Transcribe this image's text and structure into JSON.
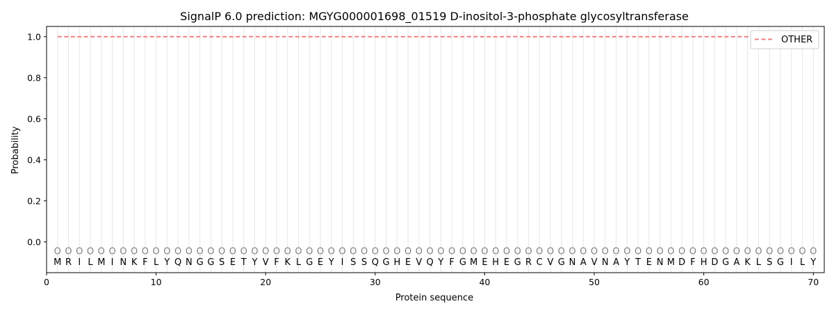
{
  "chart_data": {
    "type": "line",
    "title": "SignalP 6.0 prediction: MGYG000001698_01519 D-inositol-3-phosphate glycosyltransferase",
    "xlabel": "Protein sequence",
    "ylabel": "Probability",
    "xlim": [
      0,
      71
    ],
    "ylim": [
      -0.15,
      1.05
    ],
    "xticks": [
      0,
      10,
      20,
      30,
      40,
      50,
      60,
      70
    ],
    "yticks": [
      0.0,
      0.2,
      0.4,
      0.6,
      0.8,
      1.0
    ],
    "ytick_labels": [
      "0.0",
      "0.2",
      "0.4",
      "0.6",
      "0.8",
      "1.0"
    ],
    "grid": "vertical lines at each residue",
    "legend_position": "upper right",
    "sequence": [
      "M",
      "R",
      "I",
      "L",
      "M",
      "I",
      "N",
      "K",
      "F",
      "L",
      "Y",
      "Q",
      "N",
      "G",
      "G",
      "S",
      "E",
      "T",
      "Y",
      "V",
      "F",
      "K",
      "L",
      "G",
      "E",
      "Y",
      "I",
      "S",
      "S",
      "Q",
      "G",
      "H",
      "E",
      "V",
      "Q",
      "Y",
      "F",
      "G",
      "M",
      "E",
      "H",
      "E",
      "G",
      "R",
      "C",
      "V",
      "G",
      "N",
      "A",
      "V",
      "N",
      "A",
      "Y",
      "T",
      "E",
      "N",
      "M",
      "D",
      "F",
      "H",
      "D",
      "G",
      "A",
      "K",
      "L",
      "S",
      "G",
      "I",
      "L",
      "Y"
    ],
    "predicted_label": "O",
    "marker_y": -0.045,
    "series": [
      {
        "name": "OTHER",
        "color": "#f08080",
        "style": "dashed",
        "x_start": 1,
        "x_end": 70,
        "value": 1.0
      }
    ]
  }
}
